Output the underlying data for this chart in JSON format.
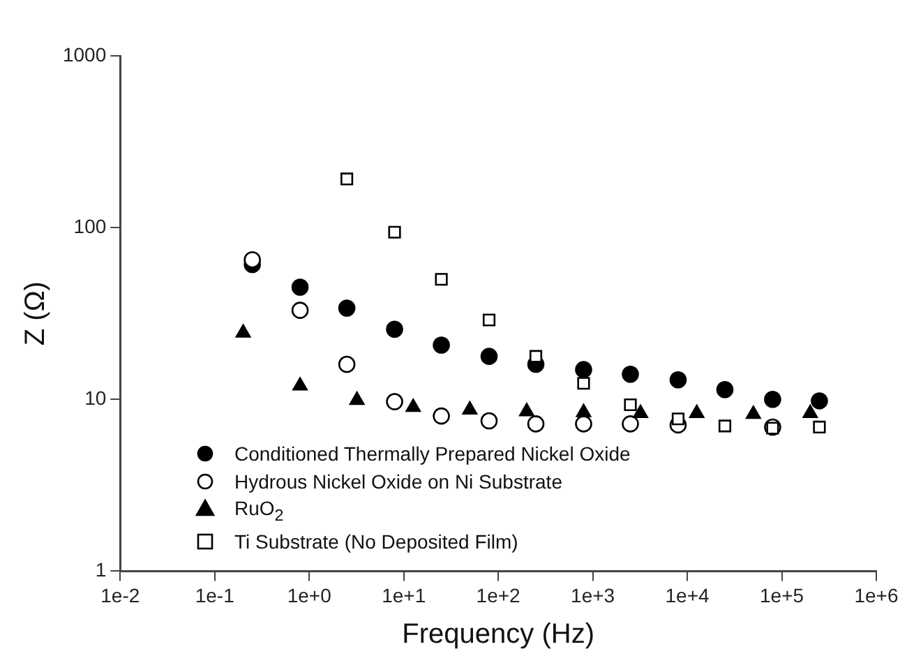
{
  "chart_data": {
    "type": "scatter",
    "xlabel": "Frequency (Hz)",
    "ylabel": "Z (Ω)",
    "log": "xy",
    "grid": false,
    "legend": "bottom left",
    "xlim": [
      0.01,
      1000000
    ],
    "ylim": [
      1,
      1000
    ],
    "xticks": [
      {
        "value": 0.01,
        "label": "1e-2"
      },
      {
        "value": 0.1,
        "label": "1e-1"
      },
      {
        "value": 1,
        "label": "1e+0"
      },
      {
        "value": 10,
        "label": "1e+1"
      },
      {
        "value": 100,
        "label": "1e+2"
      },
      {
        "value": 1000,
        "label": "1e+3"
      },
      {
        "value": 10000,
        "label": "1e+4"
      },
      {
        "value": 100000,
        "label": "1e+5"
      },
      {
        "value": 1000000,
        "label": "1e+6"
      }
    ],
    "yticks": [
      1,
      10,
      100,
      1000
    ],
    "series": [
      {
        "name": "Conditioned Thermally Prepared Nickel Oxide",
        "color": "#000000",
        "marker": "circle",
        "x": [
          0.25,
          0.8,
          2.5,
          8,
          25,
          80,
          250,
          800,
          2500,
          8000,
          25000,
          80000,
          250000
        ],
        "values": [
          61,
          45,
          34,
          25.6,
          20.7,
          17.8,
          16,
          14.9,
          14,
          13,
          11.4,
          10,
          9.8
        ]
      },
      {
        "name": "Hydrous Nickel Oxide on Ni Substrate",
        "color": "#ffffff",
        "marker": "circle",
        "x": [
          0.25,
          0.8,
          2.5,
          8,
          25,
          80,
          250,
          800,
          2500,
          8000,
          25000,
          80000
        ],
        "values": [
          65,
          33,
          16,
          9.7,
          8,
          7.5,
          7.2,
          7.2,
          7.2,
          7.1,
          null,
          6.9
        ]
      },
      {
        "name": "RuO$_{2}$",
        "color": "#000000",
        "marker": "triangle",
        "x": [
          0.2,
          0.8,
          3.2,
          12.6,
          50,
          200,
          800,
          3200,
          12600,
          50000,
          200000
        ],
        "values": [
          24.4,
          12,
          9.9,
          9,
          8.7,
          8.5,
          8.4,
          8.3,
          8.3,
          8.2,
          8.3
        ]
      },
      {
        "name": "Ti Substrate (No Deposited Film)",
        "color": "#ffffff",
        "marker": "square",
        "x": [
          2.5,
          8,
          25,
          80,
          250,
          800,
          2500,
          8000,
          25000,
          80000,
          250000
        ],
        "values": [
          192,
          94,
          50,
          29,
          17.8,
          12.4,
          9.3,
          7.7,
          7,
          6.8,
          6.9
        ]
      }
    ]
  }
}
